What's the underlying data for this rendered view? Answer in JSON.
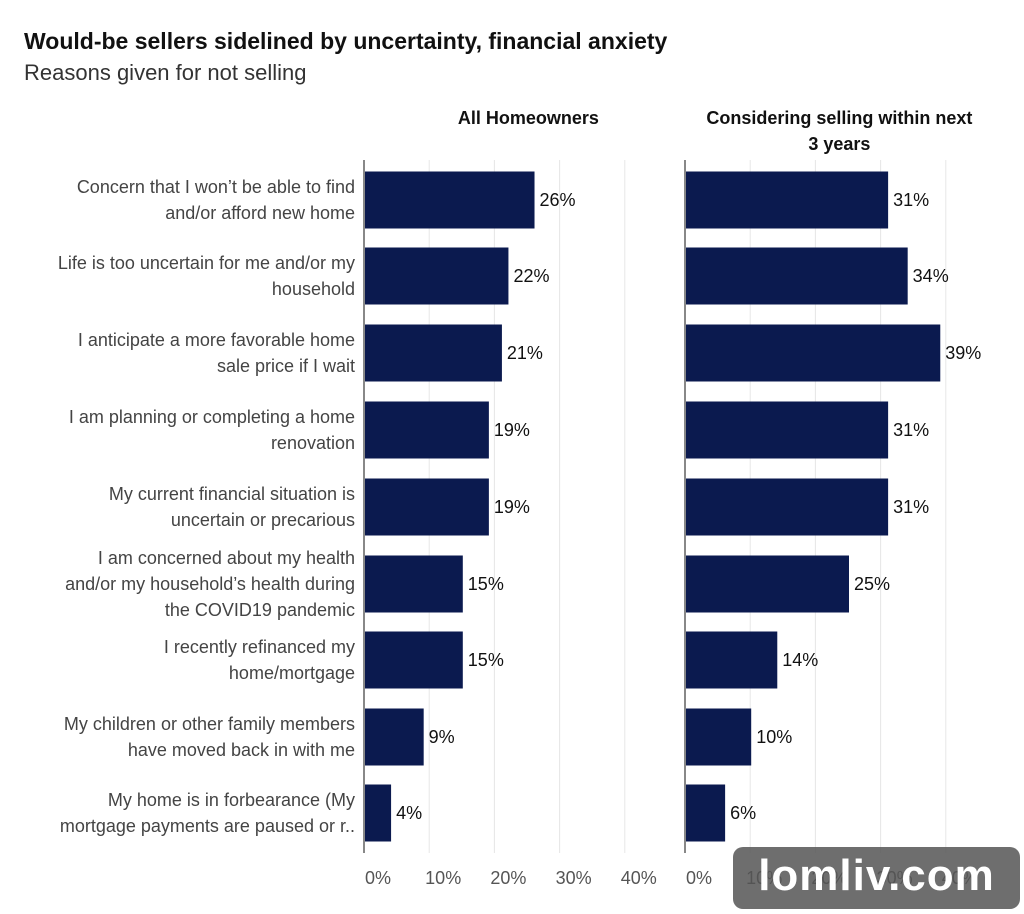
{
  "chart": {
    "title": "Would-be sellers sidelined by uncertainty, financial anxiety",
    "subtitle": "Reasons given for not selling"
  },
  "chart_data": {
    "type": "bar",
    "orientation": "horizontal",
    "categories": [
      [
        "Concern that I won’t be able to find",
        "and/or afford new home"
      ],
      [
        "Life is too uncertain for me and/or my",
        "household"
      ],
      [
        "I anticipate a more favorable home",
        "sale price if I wait"
      ],
      [
        "I am planning or completing a home",
        "renovation"
      ],
      [
        "My current financial situation is",
        "uncertain or precarious"
      ],
      [
        "I am concerned about my health",
        "and/or my household’s health during",
        "the COVID19 pandemic"
      ],
      [
        "I recently refinanced my",
        "home/mortgage"
      ],
      [
        "My children or other family members",
        "have moved back in with me"
      ],
      [
        "My home is in forbearance (My",
        "mortgage payments are paused or r.."
      ]
    ],
    "panels": [
      {
        "title": [
          "All Homeowners"
        ],
        "values": [
          26,
          22,
          21,
          19,
          19,
          15,
          15,
          9,
          4
        ],
        "labels": [
          "26%",
          "22%",
          "21%",
          "19%",
          "19%",
          "15%",
          "15%",
          "9%",
          "4%"
        ]
      },
      {
        "title": [
          "Considering selling within next",
          "3 years"
        ],
        "values": [
          31,
          34,
          39,
          31,
          31,
          25,
          14,
          10,
          6
        ],
        "labels": [
          "31%",
          "34%",
          "39%",
          "31%",
          "31%",
          "25%",
          "14%",
          "10%",
          "6%"
        ]
      }
    ],
    "xlim": [
      0,
      40
    ],
    "xticks": [
      0,
      10,
      20,
      30,
      40
    ],
    "xtick_labels": [
      "0%",
      "10%",
      "20%",
      "30%",
      "40%"
    ],
    "bar_color": "#0b1a4f",
    "grid": true
  },
  "watermark": {
    "text": "lomliv.com"
  }
}
